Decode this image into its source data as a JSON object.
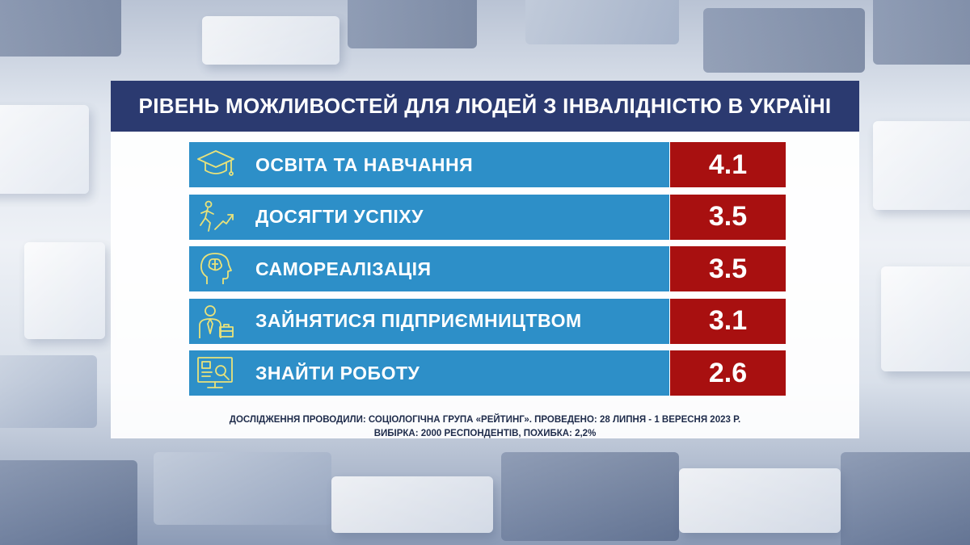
{
  "chart_data": {
    "type": "table",
    "title": "РІВЕНЬ МОЖЛИВОСТЕЙ ДЛЯ ЛЮДЕЙ З ІНВАЛІДНІСТЮ В УКРАЇНІ",
    "rows": [
      {
        "label": "ОСВІТА ТА НАВЧАННЯ",
        "value": "4.1",
        "icon": "graduation-cap-icon"
      },
      {
        "label": "ДОСЯГТИ УСПІХУ",
        "value": "3.5",
        "icon": "running-person-arrow-icon"
      },
      {
        "label": "САМОРЕАЛІЗАЦІЯ",
        "value": "3.5",
        "icon": "head-brain-icon"
      },
      {
        "label": "ЗАЙНЯТИСЯ ПІДПРИЄМНИЦТВОМ",
        "value": "3.1",
        "icon": "businessman-briefcase-icon"
      },
      {
        "label": "ЗНАЙТИ РОБОТУ",
        "value": "2.6",
        "icon": "monitor-search-icon"
      }
    ]
  },
  "footnote": {
    "line1": "ДОСЛІДЖЕННЯ ПРОВОДИЛИ: СОЦІОЛОГІЧНА ГРУПА «РЕЙТИНГ». ПРОВЕДЕНО: 28 ЛИПНЯ - 1 ВЕРЕСНЯ 2023 Р.",
    "line2": "ВИБІРКА: 2000 РЕСПОНДЕНТІВ, ПОХИБКА: 2,2%"
  },
  "colors": {
    "title_bg": "#2b3a70",
    "label_bg": "#2d8fc8",
    "value_bg": "#a81010",
    "icon_stroke": "#e9e27a"
  }
}
